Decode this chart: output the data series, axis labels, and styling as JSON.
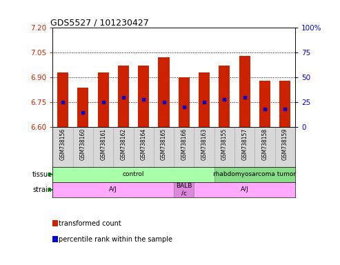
{
  "title": "GDS5527 / 101230427",
  "samples": [
    "GSM738156",
    "GSM738160",
    "GSM738161",
    "GSM738162",
    "GSM738164",
    "GSM738165",
    "GSM738166",
    "GSM738163",
    "GSM738155",
    "GSM738157",
    "GSM738158",
    "GSM738159"
  ],
  "transformed_count": [
    6.93,
    6.84,
    6.93,
    6.97,
    6.97,
    7.02,
    6.9,
    6.93,
    6.97,
    7.03,
    6.88,
    6.88
  ],
  "percentile_rank": [
    25,
    15,
    25,
    30,
    28,
    25,
    20,
    25,
    28,
    30,
    18,
    18
  ],
  "ylim_left": [
    6.6,
    7.2
  ],
  "yticks_left": [
    6.6,
    6.75,
    6.9,
    7.05,
    7.2
  ],
  "yticks_right": [
    0,
    25,
    50,
    75,
    100
  ],
  "bar_color": "#cc2200",
  "dot_color": "#0000cc",
  "bar_bottom": 6.6,
  "right_axis_color": "#0000cc",
  "left_axis_color": "#cc2200",
  "tissue_groups": [
    {
      "label": "control",
      "start": 0,
      "end": 8,
      "color": "#aaffaa"
    },
    {
      "label": "rhabdomyosarcoma tumor",
      "start": 8,
      "end": 12,
      "color": "#88dd88"
    }
  ],
  "strain_groups": [
    {
      "label": "A/J",
      "start": 0,
      "end": 6,
      "color": "#ffaaff"
    },
    {
      "label": "BALB\n/c",
      "start": 6,
      "end": 7,
      "color": "#dd88dd"
    },
    {
      "label": "A/J",
      "start": 7,
      "end": 12,
      "color": "#ffaaff"
    }
  ],
  "legend_items": [
    {
      "color": "#cc2200",
      "label": "transformed count"
    },
    {
      "color": "#0000cc",
      "label": "percentile rank within the sample"
    }
  ],
  "background_color": "#ffffff",
  "xlab_bg": "#d8d8d8"
}
